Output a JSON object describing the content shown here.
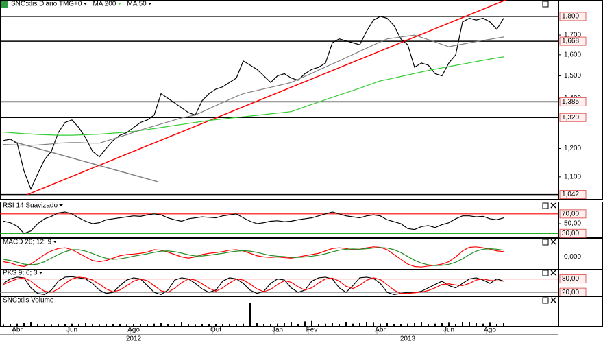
{
  "chart_data": [
    {
      "type": "line",
      "title": "SNC:xlis Diário TMG+0",
      "log": true,
      "ylim": [
        1028,
        1893
      ],
      "yticks": [
        {
          "value": 1100,
          "label": "1,100"
        },
        {
          "value": 1200,
          "label": "1,200"
        },
        {
          "value": 1400,
          "label": "1,400"
        },
        {
          "value": 1500,
          "label": "1,500"
        },
        {
          "value": 1600,
          "label": "1,600"
        },
        {
          "value": 1700,
          "label": "1,700"
        }
      ],
      "levels": [
        {
          "value": 1800,
          "label": "1,800"
        },
        {
          "value": 1668,
          "label": "1,668"
        },
        {
          "value": 1385,
          "label": "1,385"
        },
        {
          "value": 1320,
          "label": "1,320"
        },
        {
          "value": 1042,
          "label": "1,042"
        }
      ],
      "trendlines": [
        {
          "color": "#ff0000",
          "points": [
            [
              3.5,
              1042
            ],
            [
              78.5,
              1979
            ]
          ]
        },
        {
          "color": "#808080",
          "points": [
            [
              1.5,
              1225
            ],
            [
              22.5,
              1084
            ]
          ]
        }
      ],
      "categories": [
        null,
        null,
        "Abr",
        null,
        null,
        null,
        null,
        null,
        null,
        null,
        "Jun",
        null,
        null,
        null,
        null,
        null,
        null,
        null,
        null,
        "Ago",
        null,
        null,
        null,
        null,
        null,
        null,
        null,
        null,
        null,
        null,
        null,
        "Out",
        null,
        null,
        null,
        null,
        null,
        null,
        null,
        null,
        "Jan",
        null,
        null,
        null,
        null,
        "Fev",
        null,
        null,
        null,
        null,
        null,
        null,
        null,
        null,
        null,
        "Abr",
        null,
        null,
        null,
        null,
        null,
        null,
        null,
        null,
        null,
        "Jun",
        null,
        null,
        null,
        null,
        null,
        "Ago",
        null,
        null
      ],
      "year_categories": [
        null,
        null,
        null,
        null,
        null,
        null,
        null,
        null,
        null,
        null,
        null,
        null,
        null,
        null,
        null,
        null,
        null,
        null,
        null,
        "2012",
        null,
        null,
        null,
        null,
        null,
        null,
        null,
        null,
        null,
        null,
        null,
        null,
        null,
        null,
        null,
        null,
        null,
        null,
        null,
        null,
        null,
        null,
        null,
        null,
        null,
        null,
        null,
        null,
        null,
        null,
        null,
        null,
        null,
        null,
        null,
        null,
        null,
        null,
        null,
        "2013",
        null,
        null,
        null,
        null,
        null,
        null,
        null,
        null,
        null,
        null,
        null,
        null,
        null,
        null
      ],
      "series": [
        {
          "color": "#000000",
          "values": [
            1230,
            1235,
            1220,
            1120,
            1060,
            1110,
            1160,
            1190,
            1260,
            1300,
            1310,
            1280,
            1240,
            1190,
            1170,
            1200,
            1230,
            1250,
            1260,
            1280,
            1300,
            1310,
            1330,
            1420,
            1400,
            1380,
            1360,
            1340,
            1330,
            1390,
            1420,
            1440,
            1450,
            1470,
            1490,
            1570,
            1550,
            1530,
            1500,
            1470,
            1500,
            1510,
            1490,
            1480,
            1510,
            1530,
            1540,
            1560,
            1660,
            1680,
            1670,
            1660,
            1650,
            1720,
            1780,
            1800,
            1790,
            1750,
            1680,
            1650,
            1540,
            1560,
            1550,
            1510,
            1500,
            1560,
            1600,
            1770,
            1790,
            1780,
            1790,
            1770,
            1730,
            1790
          ]
        },
        {
          "name": "MA 200",
          "color": "#33cc33",
          "values": [
            1262,
            1260,
            1258,
            1256,
            1255,
            1253,
            1252,
            1251,
            1250,
            1250,
            1250,
            1251,
            1252,
            1253,
            1254,
            1256,
            1258,
            1260,
            1262,
            1265,
            1268,
            1272,
            1276,
            1280,
            1284,
            1288,
            1292,
            1296,
            1300,
            1304,
            1308,
            1311,
            1314,
            1317,
            1320,
            1323,
            1326,
            1329,
            1332,
            1335,
            1338,
            1341,
            1344,
            1354,
            1364,
            1374,
            1384,
            1394,
            1404,
            1414,
            1424,
            1434,
            1444,
            1455,
            1466,
            1477,
            1483,
            1490,
            1497,
            1504,
            1511,
            1518,
            1525,
            1531,
            1537,
            1543,
            1549,
            1555,
            1561,
            1567,
            1573,
            1579,
            1585,
            1590
          ]
        },
        {
          "name": "MA 50",
          "color": "#808080",
          "values": [
            1215,
            1214,
            1213,
            1212,
            1212,
            1213,
            1215,
            1217,
            1220,
            1221,
            1222,
            1222,
            1221,
            1220,
            1220,
            1228,
            1236,
            1244,
            1252,
            1261,
            1270,
            1278,
            1286,
            1294,
            1302,
            1310,
            1318,
            1324,
            1330,
            1343,
            1356,
            1369,
            1382,
            1395,
            1408,
            1420,
            1427,
            1434,
            1441,
            1448,
            1455,
            1462,
            1470,
            1484,
            1498,
            1512,
            1527,
            1541,
            1556,
            1570,
            1586,
            1601,
            1617,
            1633,
            1649,
            1664,
            1680,
            1685,
            1690,
            1695,
            1700,
            1688,
            1676,
            1664,
            1652,
            1640,
            1647,
            1653,
            1660,
            1666,
            1672,
            1678,
            1684,
            1690
          ]
        }
      ]
    },
    {
      "type": "line",
      "title": "RSI 14 Suavizado",
      "ylim": [
        22,
        81
      ],
      "yticks": [
        {
          "value": 50,
          "label": "50,00"
        }
      ],
      "levels": [
        {
          "value": 70,
          "label": "70,00",
          "color": "#ff0000"
        },
        {
          "value": 30,
          "label": "30,00",
          "color": "#00aa00"
        }
      ],
      "series": [
        {
          "color": "#000000",
          "values": [
            55,
            52,
            45,
            30,
            35,
            50,
            60,
            65,
            72,
            74,
            70,
            62,
            55,
            50,
            52,
            58,
            60,
            62,
            64,
            66,
            65,
            68,
            70,
            68,
            62,
            58,
            55,
            60,
            62,
            64,
            63,
            62,
            66,
            68,
            70,
            62,
            55,
            50,
            52,
            55,
            56,
            54,
            55,
            58,
            60,
            62,
            66,
            70,
            74,
            70,
            66,
            64,
            62,
            66,
            68,
            66,
            58,
            54,
            50,
            40,
            38,
            44,
            46,
            42,
            48,
            52,
            60,
            66,
            66,
            64,
            65,
            60,
            58,
            62
          ]
        }
      ]
    },
    {
      "type": "line",
      "title": "MACD 26; 12; 9",
      "ylim": [
        -50,
        50
      ],
      "yticks": [
        {
          "value": 0,
          "label": "0,000"
        }
      ],
      "series": [
        {
          "color": "#ff0000",
          "values": [
            -20,
            -25,
            -35,
            -40,
            -30,
            -10,
            10,
            25,
            35,
            38,
            30,
            15,
            0,
            -15,
            -20,
            -15,
            -5,
            5,
            10,
            12,
            15,
            20,
            30,
            28,
            20,
            10,
            0,
            -5,
            0,
            10,
            15,
            18,
            22,
            28,
            30,
            25,
            15,
            5,
            0,
            -2,
            0,
            -3,
            -5,
            0,
            5,
            10,
            15,
            25,
            35,
            38,
            35,
            30,
            32,
            38,
            42,
            40,
            30,
            10,
            -10,
            -30,
            -40,
            -42,
            -38,
            -35,
            -30,
            -20,
            0,
            25,
            40,
            42,
            38,
            32,
            25,
            22
          ]
        },
        {
          "color": "#228b22",
          "values": [
            -10,
            -15,
            -22,
            -30,
            -33,
            -30,
            -20,
            -5,
            10,
            22,
            30,
            30,
            24,
            14,
            3,
            -6,
            -10,
            -8,
            -3,
            3,
            8,
            13,
            19,
            24,
            25,
            22,
            16,
            9,
            4,
            4,
            7,
            11,
            15,
            20,
            24,
            26,
            24,
            19,
            12,
            6,
            3,
            1,
            -2,
            -2,
            0,
            3,
            7,
            13,
            21,
            28,
            32,
            33,
            32,
            34,
            37,
            39,
            37,
            30,
            18,
            2,
            -14,
            -26,
            -33,
            -36,
            -35,
            -31,
            -22,
            -8,
            10,
            24,
            32,
            34,
            32,
            28
          ]
        }
      ]
    },
    {
      "type": "line",
      "title": "PKS 9; 6; 3",
      "ylim": [
        2,
        94
      ],
      "levels": [
        {
          "value": 80,
          "label": "80,00",
          "color": "#ff0000"
        },
        {
          "value": 20,
          "label": "20,00",
          "color": "#808080"
        }
      ],
      "series": [
        {
          "color": "#000000",
          "values": [
            60,
            80,
            88,
            85,
            40,
            15,
            10,
            30,
            70,
            88,
            90,
            85,
            80,
            60,
            30,
            15,
            20,
            50,
            75,
            85,
            80,
            50,
            20,
            10,
            30,
            75,
            85,
            80,
            60,
            35,
            20,
            30,
            70,
            85,
            80,
            60,
            30,
            15,
            25,
            60,
            80,
            75,
            40,
            20,
            30,
            70,
            85,
            88,
            80,
            40,
            20,
            50,
            85,
            88,
            82,
            60,
            20,
            10,
            15,
            20,
            18,
            25,
            40,
            55,
            70,
            50,
            40,
            60,
            80,
            85,
            75,
            60,
            80,
            70
          ]
        },
        {
          "color": "#ff0000",
          "values": [
            55,
            68,
            80,
            85,
            70,
            45,
            25,
            20,
            35,
            60,
            80,
            88,
            85,
            75,
            57,
            35,
            22,
            30,
            50,
            70,
            80,
            72,
            50,
            27,
            20,
            38,
            63,
            80,
            75,
            58,
            38,
            25,
            40,
            62,
            80,
            75,
            57,
            35,
            23,
            33,
            55,
            72,
            65,
            45,
            30,
            40,
            62,
            80,
            84,
            70,
            47,
            37,
            52,
            74,
            85,
            77,
            54,
            30,
            15,
            15,
            18,
            21,
            28,
            40,
            55,
            58,
            53,
            50,
            60,
            75,
            80,
            73,
            72,
            70
          ]
        }
      ]
    },
    {
      "type": "bar",
      "title": "SNC:xlis Volume",
      "ylim": [
        0,
        100
      ],
      "series": [
        {
          "color": "#000000",
          "values": [
            5,
            8,
            10,
            12,
            15,
            8,
            6,
            5,
            7,
            8,
            10,
            8,
            12,
            6,
            5,
            7,
            8,
            6,
            5,
            9,
            8,
            7,
            10,
            12,
            8,
            6,
            15,
            7,
            5,
            9,
            6,
            8,
            7,
            6,
            8,
            10,
            100,
            12,
            9,
            8,
            10,
            12,
            15,
            9,
            20,
            22,
            8,
            10,
            12,
            9,
            15,
            10,
            12,
            18,
            14,
            10,
            12,
            8,
            6,
            10,
            12,
            15,
            8,
            10,
            12,
            14,
            9,
            16,
            18,
            12,
            10,
            14,
            8,
            12
          ]
        }
      ]
    }
  ]
}
